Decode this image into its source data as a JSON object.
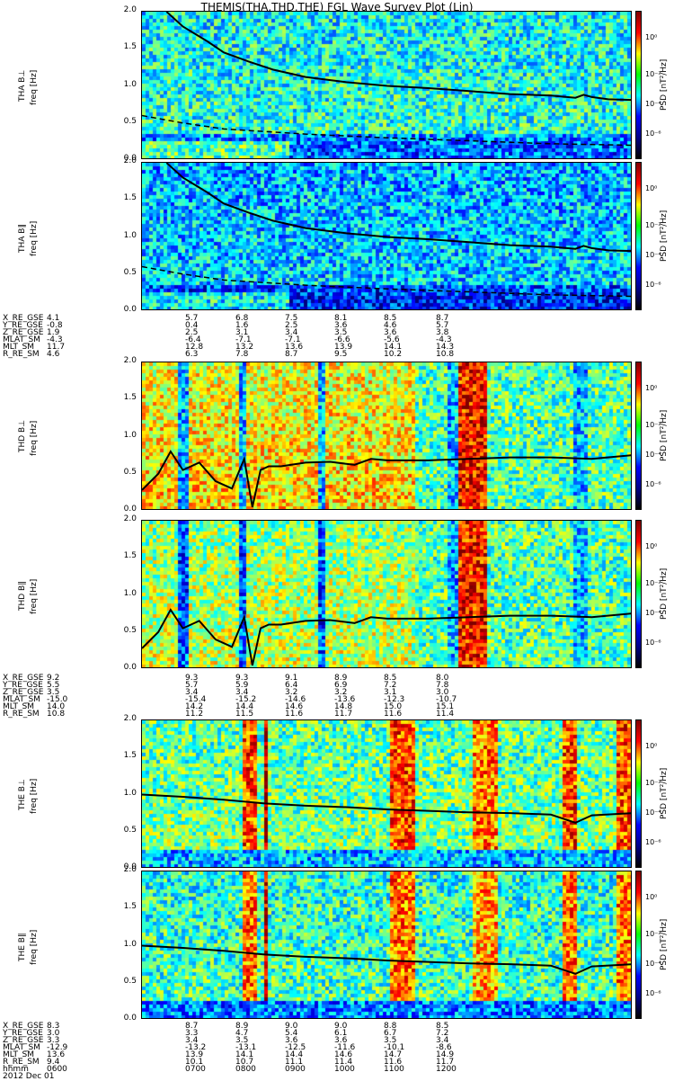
{
  "title": "THEMIS(THA,THD,THE) FGL Wave Survey Plot (Lin)",
  "panels": [
    {
      "probe": "THA",
      "ylabel": "THA B⊥",
      "unit": "freq [Hz]"
    },
    {
      "probe": "THA",
      "ylabel": "THA B∥",
      "unit": "freq [Hz]"
    },
    {
      "probe": "THD",
      "ylabel": "THD B⊥",
      "unit": "freq [Hz]"
    },
    {
      "probe": "THD",
      "ylabel": "THD B∥",
      "unit": "freq [Hz]"
    },
    {
      "probe": "THE",
      "ylabel": "THE B⊥",
      "unit": "freq [Hz]"
    },
    {
      "probe": "THE",
      "ylabel": "THE B∥",
      "unit": "freq [Hz]"
    }
  ],
  "colorbar": {
    "label": "PSD [nT²/Hz]",
    "ticks": [
      "10⁰",
      "10⁻²",
      "10⁻⁴",
      "10⁻⁶"
    ]
  },
  "eph_labels": [
    "X_RE_GSE",
    "Y_RE_GSE",
    "Z_RE_GSE",
    "MLAT_SM",
    "MLT_SM",
    "R_RE_SM"
  ],
  "eph_labels_last": [
    "X_RE_GSE",
    "Y_RE_GSE",
    "Z_RE_GSE",
    "MLAT_SM",
    "MLT_SM",
    "R_RE_SM",
    "hhmm",
    "2012 Dec 01"
  ],
  "eph": [
    {
      "cols": [
        [
          "4.1",
          "-0.8",
          "1.9",
          "-4.3",
          "11.7",
          "4.6"
        ],
        [
          "5.7",
          "0.4",
          "2.5",
          "-6.4",
          "12.8",
          "6.3"
        ],
        [
          "6.8",
          "1.6",
          "3.1",
          "-7.1",
          "13.2",
          "7.8"
        ],
        [
          "7.5",
          "2.5",
          "3.4",
          "-7.1",
          "13.6",
          "8.7"
        ],
        [
          "8.1",
          "3.6",
          "3.5",
          "-6.6",
          "13.9",
          "9.5"
        ],
        [
          "8.5",
          "4.6",
          "3.6",
          "-5.6",
          "14.1",
          "10.2"
        ],
        [
          "8.7",
          "5.7",
          "3.8",
          "-4.3",
          "14.3",
          "10.8"
        ]
      ]
    },
    {
      "cols": [
        [
          "9.2",
          "5.5",
          "3.5",
          "-15.0",
          "14.0",
          "10.8"
        ],
        [
          "9.3",
          "5.7",
          "3.4",
          "-15.4",
          "14.2",
          "11.2"
        ],
        [
          "9.3",
          "5.9",
          "3.4",
          "-15.2",
          "14.4",
          "11.5"
        ],
        [
          "9.1",
          "6.4",
          "3.2",
          "-14.6",
          "14.6",
          "11.6"
        ],
        [
          "8.9",
          "6.9",
          "3.2",
          "-13.6",
          "14.8",
          "11.7"
        ],
        [
          "8.5",
          "7.2",
          "3.1",
          "-12.3",
          "15.0",
          "11.6"
        ],
        [
          "8.0",
          "7.8",
          "3.0",
          "-10.7",
          "15.1",
          "11.4"
        ]
      ]
    },
    {
      "cols": [
        [
          "8.3",
          "3.0",
          "3.3",
          "-12.9",
          "13.6",
          "9.4",
          "0600"
        ],
        [
          "8.7",
          "3.3",
          "3.4",
          "-13.2",
          "13.9",
          "10.1",
          "0700"
        ],
        [
          "8.9",
          "4.7",
          "3.5",
          "-13.1",
          "14.1",
          "10.7",
          "0800"
        ],
        [
          "9.0",
          "5.4",
          "3.6",
          "-12.5",
          "14.4",
          "11.1",
          "0900"
        ],
        [
          "9.0",
          "6.1",
          "3.6",
          "-11.6",
          "14.6",
          "11.4",
          "1000"
        ],
        [
          "8.8",
          "6.7",
          "3.5",
          "-10.1",
          "14.7",
          "11.6",
          "1100"
        ],
        [
          "8.5",
          "7.2",
          "3.4",
          "-8.6",
          "14.9",
          "11.7",
          "1200"
        ]
      ]
    }
  ],
  "chart_data": {
    "type": "heatmap",
    "title": "THEMIS(THA,THD,THE) FGL Wave Survey Plot (Lin)",
    "xlabel": "hhmm",
    "x_ticks": [
      "0600",
      "0700",
      "0800",
      "0900",
      "1000",
      "1100",
      "1200"
    ],
    "xlim": [
      "0600",
      "1200"
    ],
    "ylabel": "freq [Hz]",
    "ylim": [
      0,
      2.0
    ],
    "y_ticks": [
      "0.0",
      "0.5",
      "1.0",
      "1.5",
      "2.0"
    ],
    "color_scale": "log",
    "color_label": "PSD [nT²/Hz]",
    "color_ticks": [
      "10⁰",
      "10⁻²",
      "10⁻⁴",
      "10⁻⁶"
    ],
    "series": [
      {
        "panel": 0,
        "curve": "gyrofrequency",
        "x_hours": [
          6.3,
          6.5,
          6.8,
          7.0,
          7.3,
          7.6,
          8.0,
          8.5,
          9.0,
          9.5,
          10.0,
          10.5,
          11.0,
          11.3,
          11.4,
          11.5,
          11.7,
          12.0
        ],
        "freq_hz": [
          2.0,
          1.8,
          1.6,
          1.45,
          1.33,
          1.22,
          1.12,
          1.05,
          1.0,
          0.97,
          0.93,
          0.89,
          0.87,
          0.84,
          0.88,
          0.85,
          0.82,
          0.81
        ]
      },
      {
        "panel": 0,
        "curve": "dashed",
        "x_hours": [
          6.0,
          6.5,
          7.0,
          8.0,
          9.0,
          10.0,
          11.0,
          12.0
        ],
        "freq_hz": [
          0.6,
          0.5,
          0.42,
          0.35,
          0.3,
          0.26,
          0.22,
          0.2
        ]
      },
      {
        "panel": 2,
        "curve": "gyrofrequency",
        "x_hours": [
          6.0,
          6.2,
          6.35,
          6.5,
          6.7,
          6.9,
          7.1,
          7.25,
          7.35,
          7.45,
          7.55,
          7.7,
          8.0,
          8.3,
          8.6,
          8.8,
          9.0,
          9.5,
          10.0,
          10.5,
          11.0,
          11.5,
          12.0
        ],
        "freq_hz": [
          0.28,
          0.5,
          0.8,
          0.55,
          0.65,
          0.4,
          0.3,
          0.7,
          0.05,
          0.55,
          0.6,
          0.6,
          0.65,
          0.66,
          0.62,
          0.7,
          0.68,
          0.68,
          0.7,
          0.72,
          0.72,
          0.7,
          0.75
        ]
      },
      {
        "panel": 4,
        "curve": "gyrofrequency",
        "x_hours": [
          6.0,
          6.5,
          7.0,
          7.5,
          8.0,
          8.5,
          9.0,
          9.5,
          10.0,
          10.5,
          11.0,
          11.3,
          11.5,
          12.0
        ],
        "freq_hz": [
          1.0,
          0.97,
          0.93,
          0.88,
          0.85,
          0.83,
          0.8,
          0.78,
          0.76,
          0.75,
          0.73,
          0.62,
          0.72,
          0.75
        ]
      }
    ]
  }
}
